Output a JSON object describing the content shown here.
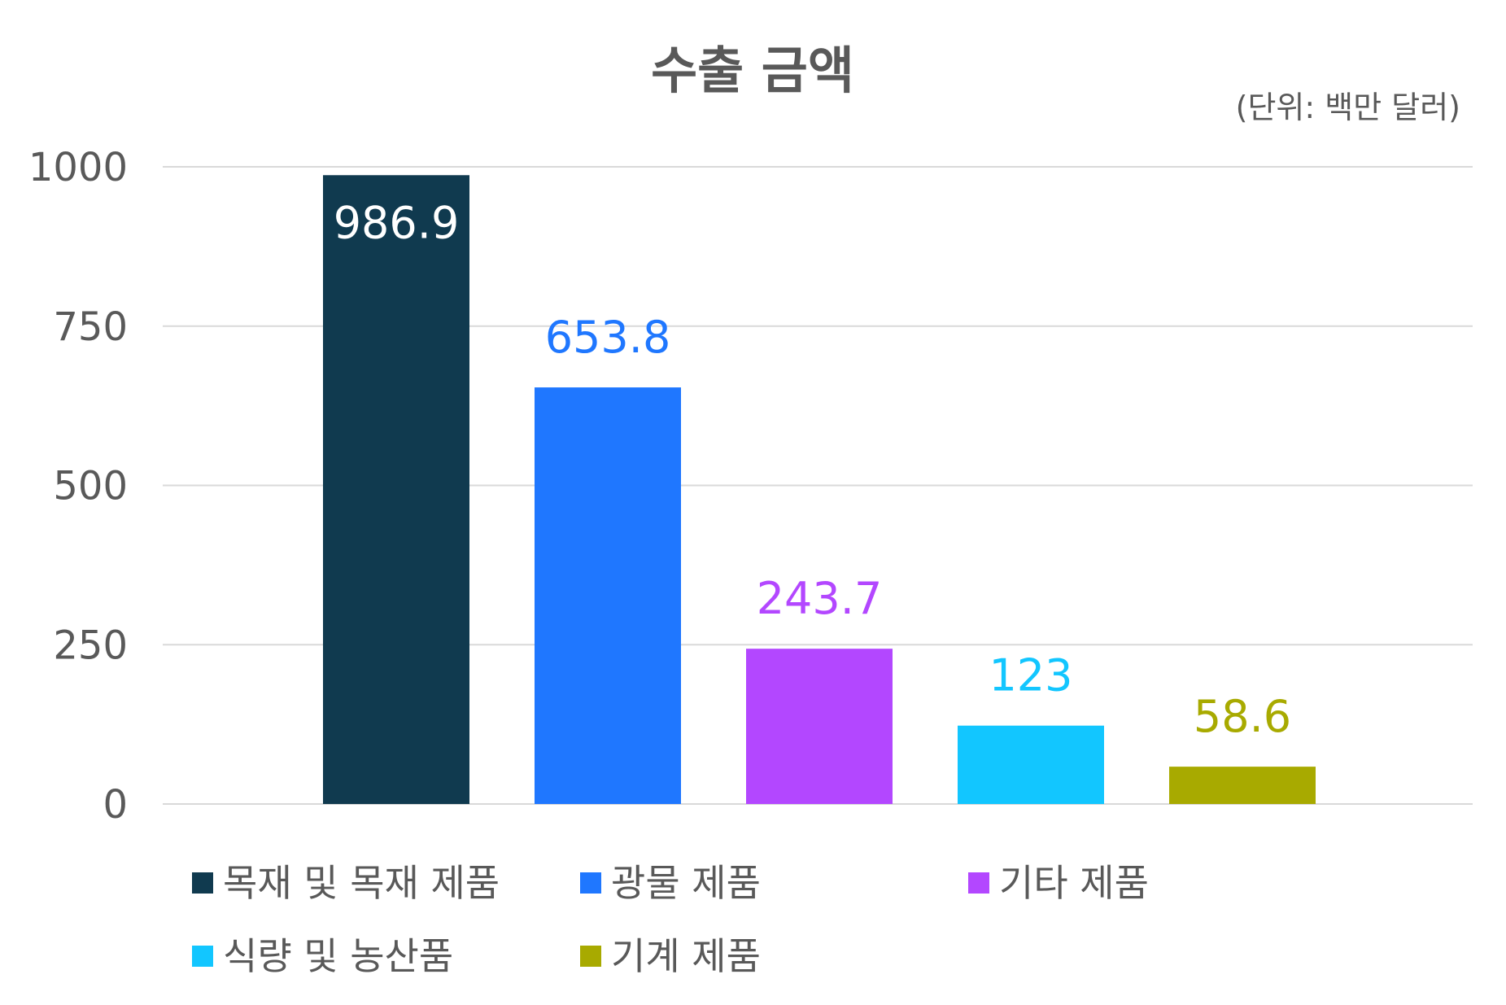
{
  "chart_data": {
    "type": "bar",
    "title": "수출 금액",
    "unit": "(단위: 백만 달러)",
    "categories": [
      "목재 및 목재 제품",
      "광물 제품",
      "기타 제품",
      "식량 및 농산품",
      "기계 제품"
    ],
    "values": [
      986.9,
      653.8,
      243.7,
      123,
      58.6
    ],
    "data_labels": [
      "986.9",
      "653.8",
      "243.7",
      "123",
      "58.6"
    ],
    "colors": [
      "#103a4f",
      "#1f77ff",
      "#b347ff",
      "#12c6ff",
      "#a8aa00"
    ],
    "label_colors": [
      "#ffffff",
      "#1f77ff",
      "#b347ff",
      "#12c6ff",
      "#a8aa00"
    ],
    "ylim": [
      0,
      1000
    ],
    "yticks": [
      0,
      250,
      500,
      750,
      1000
    ],
    "ytick_labels": [
      "0",
      "250",
      "500",
      "750",
      "1000"
    ],
    "grid": true,
    "legend_position": "bottom"
  }
}
